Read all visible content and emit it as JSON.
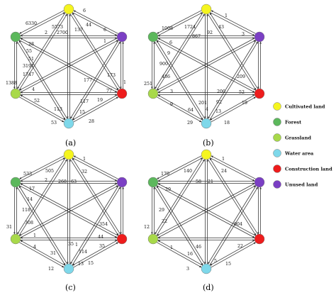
{
  "colors": {
    "cultivated": "#f5f51f",
    "forest": "#5cb85c",
    "grassland": "#a8d94a",
    "water": "#7ed8ea",
    "construction": "#ee1c1c",
    "unused": "#7b3fc4"
  },
  "legend": [
    {
      "key": "cultivated",
      "label": "Cultivated land"
    },
    {
      "key": "forest",
      "label": "Forest"
    },
    {
      "key": "grassland",
      "label": "Grassland"
    },
    {
      "key": "water",
      "label": "Water area"
    },
    {
      "key": "construction",
      "label": "Construction land"
    },
    {
      "key": "unused",
      "label": "Unused land"
    }
  ],
  "panels": [
    {
      "caption": "(a)",
      "labels": [
        "6",
        "6330",
        "5573",
        "2700",
        "44",
        "137",
        "6",
        "2",
        "1",
        "28",
        "55",
        "51",
        "3191",
        "1747",
        "1388",
        "4",
        "77",
        "117",
        "177",
        "173",
        "1",
        "52",
        "113",
        "19",
        "53",
        "15",
        "28"
      ]
    },
    {
      "caption": "(b)",
      "labels": [
        "1",
        "1008",
        "1724",
        "867",
        "92",
        "43",
        "3",
        "6",
        "9",
        "900",
        "486",
        "251",
        "3",
        "209",
        "200",
        "92",
        "201",
        "4",
        "52",
        "19",
        "9",
        "64",
        "13",
        "29",
        "18"
      ]
    },
    {
      "caption": "(c)",
      "labels": [
        "1",
        "533",
        "505",
        "268",
        "63",
        "32",
        "2",
        "17",
        "14",
        "118",
        "308",
        "31",
        "1",
        "354",
        "44",
        "4",
        "114",
        "31",
        "1",
        "35",
        "35",
        "13",
        "12",
        "15"
      ]
    },
    {
      "caption": "(d)",
      "labels": [
        "1",
        "170",
        "140",
        "58",
        "21",
        "24",
        "29",
        "29",
        "22",
        "12",
        "904",
        "1",
        "46",
        "16",
        "5",
        "3",
        "15",
        "22"
      ]
    }
  ]
}
